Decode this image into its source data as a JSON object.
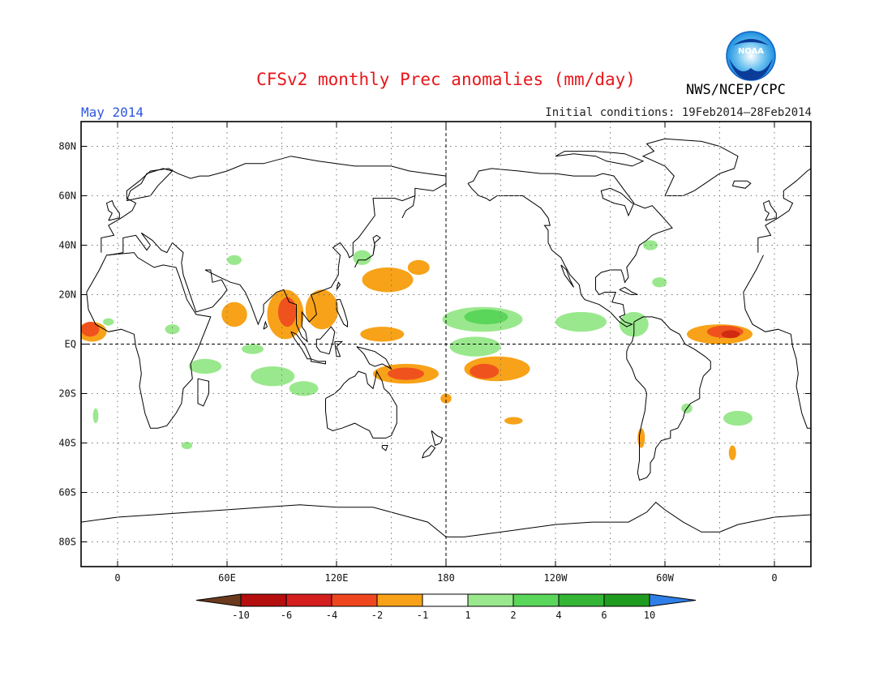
{
  "header": {
    "title": "CFSv2 monthly Prec anomalies (mm/day)",
    "month": "May 2014",
    "initial_conditions": "Initial conditions: 19Feb2014–28Feb2014",
    "agency": "NWS/NCEP/CPC",
    "logo_text": "NOAA"
  },
  "map": {
    "projection": "equirectangular",
    "lon_range": [
      -20,
      380
    ],
    "lat_range": [
      -90,
      90
    ],
    "lat_ticks": [
      {
        "value": 80,
        "label": "80N"
      },
      {
        "value": 60,
        "label": "60N"
      },
      {
        "value": 40,
        "label": "40N"
      },
      {
        "value": 20,
        "label": "20N"
      },
      {
        "value": 0,
        "label": "EQ"
      },
      {
        "value": -20,
        "label": "20S"
      },
      {
        "value": -40,
        "label": "40S"
      },
      {
        "value": -60,
        "label": "60S"
      },
      {
        "value": -80,
        "label": "80S"
      }
    ],
    "lon_ticks": [
      {
        "value": 0,
        "label": "0"
      },
      {
        "value": 60,
        "label": "60E"
      },
      {
        "value": 120,
        "label": "120E"
      },
      {
        "value": 180,
        "label": "180"
      },
      {
        "value": 240,
        "label": "120W"
      },
      {
        "value": 300,
        "label": "60W"
      },
      {
        "value": 360,
        "label": "0"
      }
    ],
    "grid": "dotted",
    "reference_lines": [
      "equator",
      "dateline"
    ]
  },
  "colorbar": {
    "labels": [
      "-10",
      "-6",
      "-4",
      "-2",
      "-1",
      "1",
      "2",
      "4",
      "6",
      "10"
    ],
    "colors": [
      "#6b3a1e",
      "#b40e0e",
      "#d41d1d",
      "#f0461f",
      "#f7a218",
      "#ffffff",
      "#9ae88d",
      "#5ad65a",
      "#35b535",
      "#1f9c1f",
      "#2f7fe8"
    ]
  },
  "anomaly_colors": {
    "dark_red": "#d02a12",
    "red_orange": "#f0521e",
    "orange": "#f7a218",
    "light_green": "#9ae88d",
    "green": "#5ad65a"
  },
  "anomaly_regions": [
    {
      "name": "west-africa-coast",
      "c": "orange",
      "lon": -14,
      "lat": 5,
      "rx": 8,
      "ry": 4
    },
    {
      "name": "west-africa-core",
      "c": "red_orange",
      "lon": -15,
      "lat": 6,
      "rx": 5,
      "ry": 3
    },
    {
      "name": "arabian-sea",
      "c": "orange",
      "lon": 64,
      "lat": 12,
      "rx": 7,
      "ry": 5
    },
    {
      "name": "bay-of-bengal",
      "c": "orange",
      "lon": 92,
      "lat": 12,
      "rx": 10,
      "ry": 10
    },
    {
      "name": "bay-of-bengal-core",
      "c": "red_orange",
      "lon": 93,
      "lat": 13,
      "rx": 5,
      "ry": 6
    },
    {
      "name": "south-china-sea",
      "c": "orange",
      "lon": 112,
      "lat": 14,
      "rx": 9,
      "ry": 8
    },
    {
      "name": "philippine-sea",
      "c": "orange",
      "lon": 148,
      "lat": 26,
      "rx": 14,
      "ry": 5
    },
    {
      "name": "nw-pacific-east",
      "c": "orange",
      "lon": 165,
      "lat": 31,
      "rx": 6,
      "ry": 3
    },
    {
      "name": "west-pacific-eq",
      "c": "orange",
      "lon": 145,
      "lat": 4,
      "rx": 12,
      "ry": 3
    },
    {
      "name": "new-guinea-band",
      "c": "orange",
      "lon": 158,
      "lat": -12,
      "rx": 18,
      "ry": 4
    },
    {
      "name": "new-guinea-core",
      "c": "red_orange",
      "lon": 158,
      "lat": -12,
      "rx": 10,
      "ry": 2.5
    },
    {
      "name": "central-pacific",
      "c": "orange",
      "lon": 208,
      "lat": -10,
      "rx": 18,
      "ry": 5
    },
    {
      "name": "central-pacific-core",
      "c": "red_orange",
      "lon": 201,
      "lat": -11,
      "rx": 8,
      "ry": 3
    },
    {
      "name": "atlantic-itcz",
      "c": "orange",
      "lon": 330,
      "lat": 4,
      "rx": 18,
      "ry": 4
    },
    {
      "name": "atlantic-itcz-core",
      "c": "red_orange",
      "lon": 333,
      "lat": 5,
      "rx": 10,
      "ry": 2.5
    },
    {
      "name": "atlantic-itcz-dark",
      "c": "dark_red",
      "lon": 336,
      "lat": 4,
      "rx": 5,
      "ry": 1.6
    },
    {
      "name": "south-atlantic",
      "c": "orange",
      "lon": 337,
      "lat": -44,
      "rx": 2,
      "ry": 3
    },
    {
      "name": "andes-south",
      "c": "orange",
      "lon": 287,
      "lat": -38,
      "rx": 2,
      "ry": 4
    },
    {
      "name": "south-pacific-dots",
      "c": "orange",
      "lon": 217,
      "lat": -31,
      "rx": 5,
      "ry": 1.5
    },
    {
      "name": "nw-pacific-dot",
      "c": "orange",
      "lon": 180,
      "lat": -22,
      "rx": 3,
      "ry": 2
    },
    {
      "name": "pacific-eq-green",
      "c": "light_green",
      "lon": 200,
      "lat": 10,
      "rx": 22,
      "ry": 5
    },
    {
      "name": "pacific-eq-green-core",
      "c": "green",
      "lon": 202,
      "lat": 11,
      "rx": 12,
      "ry": 3
    },
    {
      "name": "pacific-sq-green",
      "c": "light_green",
      "lon": 196,
      "lat": -1,
      "rx": 14,
      "ry": 4
    },
    {
      "name": "east-pacific-green",
      "c": "light_green",
      "lon": 254,
      "lat": 9,
      "rx": 14,
      "ry": 4
    },
    {
      "name": "caribbean-green",
      "c": "light_green",
      "lon": 283,
      "lat": 8,
      "rx": 8,
      "ry": 5
    },
    {
      "name": "east-africa-green",
      "c": "light_green",
      "lon": 48,
      "lat": -9,
      "rx": 9,
      "ry": 3
    },
    {
      "name": "indian-ocean-green",
      "c": "light_green",
      "lon": 85,
      "lat": -13,
      "rx": 12,
      "ry": 4
    },
    {
      "name": "indian-ocean-green-2",
      "c": "light_green",
      "lon": 102,
      "lat": -18,
      "rx": 8,
      "ry": 3
    },
    {
      "name": "west-indian-green",
      "c": "light_green",
      "lon": 74,
      "lat": -2,
      "rx": 6,
      "ry": 2
    },
    {
      "name": "sahel-green",
      "c": "light_green",
      "lon": 30,
      "lat": 6,
      "rx": 4,
      "ry": 2
    },
    {
      "name": "japan-green",
      "c": "light_green",
      "lon": 134,
      "lat": 35,
      "rx": 5,
      "ry": 3
    },
    {
      "name": "arabia-green",
      "c": "light_green",
      "lon": 64,
      "lat": 34,
      "rx": 4,
      "ry": 2
    },
    {
      "name": "us-east-green",
      "c": "light_green",
      "lon": 292,
      "lat": 40,
      "rx": 4,
      "ry": 2
    },
    {
      "name": "gulf-green",
      "c": "light_green",
      "lon": 297,
      "lat": 25,
      "rx": 4,
      "ry": 2
    },
    {
      "name": "brazil-green",
      "c": "light_green",
      "lon": 312,
      "lat": -26,
      "rx": 3,
      "ry": 2
    },
    {
      "name": "s-atlantic-green",
      "c": "light_green",
      "lon": 340,
      "lat": -30,
      "rx": 8,
      "ry": 3
    },
    {
      "name": "west-africa-green",
      "c": "light_green",
      "lon": -5,
      "lat": 9,
      "rx": 3,
      "ry": 1.5
    },
    {
      "name": "s-africa-green",
      "c": "light_green",
      "lon": -12,
      "lat": -29,
      "rx": 1.5,
      "ry": 3
    },
    {
      "name": "s-indian-green",
      "c": "light_green",
      "lon": 38,
      "lat": -41,
      "rx": 3,
      "ry": 1.5
    }
  ]
}
